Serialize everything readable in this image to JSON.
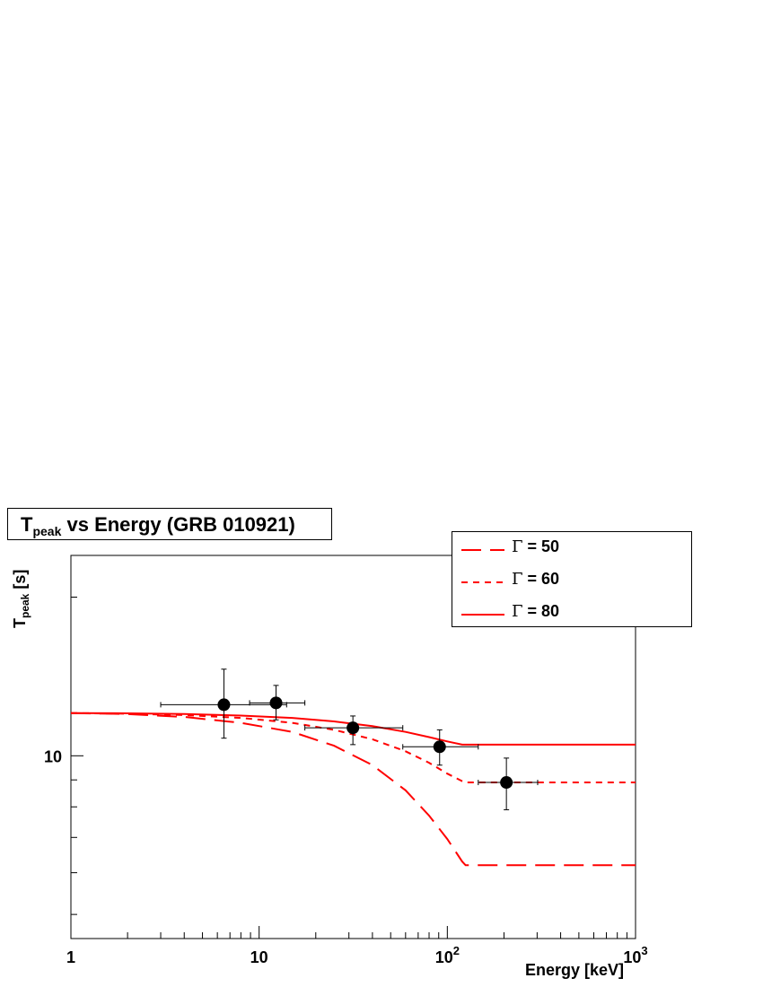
{
  "chart_data": {
    "type": "scatter",
    "title_main": "T",
    "title_sub": "peak",
    "title_rest": " vs Energy (GRB 010921)",
    "xlabel": "Energy [keV]",
    "ylabel_main": "T",
    "ylabel_sub": "peak",
    "ylabel_rest": " [s]",
    "x_scale": "log",
    "y_scale": "log",
    "xlim": [
      1,
      1000
    ],
    "ylim": [
      4.5,
      24
    ],
    "x_ticks": [
      {
        "value": 1,
        "base": "1",
        "exp": ""
      },
      {
        "value": 10,
        "base": "10",
        "exp": ""
      },
      {
        "value": 100,
        "base": "10",
        "exp": "2"
      },
      {
        "value": 1000,
        "base": "10",
        "exp": "3"
      }
    ],
    "y_ticks": [
      {
        "value": 10,
        "label": "10"
      }
    ],
    "grid": false,
    "legend_position": "top-right",
    "color": "#ff0000",
    "points": [
      {
        "x": 6.5,
        "y": 12.5,
        "xerr": [
          3.0,
          14.0
        ],
        "yerr": [
          10.8,
          14.6
        ]
      },
      {
        "x": 12.3,
        "y": 12.6,
        "xerr": [
          8.9,
          17.5
        ],
        "yerr": [
          11.7,
          13.6
        ]
      },
      {
        "x": 31.5,
        "y": 11.3,
        "xerr": [
          17.5,
          58.0
        ],
        "yerr": [
          10.5,
          11.9
        ]
      },
      {
        "x": 91.0,
        "y": 10.4,
        "xerr": [
          58.0,
          146.0
        ],
        "yerr": [
          9.6,
          11.2
        ]
      },
      {
        "x": 206.0,
        "y": 8.9,
        "xerr": [
          146.0,
          302.0
        ],
        "yerr": [
          7.9,
          9.9
        ]
      }
    ],
    "series": [
      {
        "name": "Γ = 50",
        "greek": "Γ",
        "rest": " = 50",
        "dash": "22,10",
        "x": [
          1,
          2,
          4,
          8,
          15,
          25,
          40,
          60,
          80,
          100,
          120,
          125,
          200,
          400,
          1000
        ],
        "y": [
          12.05,
          12.0,
          11.85,
          11.55,
          11.1,
          10.45,
          9.6,
          8.6,
          7.7,
          6.95,
          6.3,
          6.2,
          6.2,
          6.2,
          6.2
        ]
      },
      {
        "name": "Γ = 60",
        "greek": "Γ",
        "rest": " = 60",
        "dash": "7,6",
        "x": [
          1,
          2,
          4,
          8,
          15,
          25,
          40,
          60,
          80,
          100,
          120,
          125,
          200,
          400,
          1000
        ],
        "y": [
          12.05,
          12.02,
          11.95,
          11.8,
          11.55,
          11.2,
          10.75,
          10.2,
          9.7,
          9.25,
          8.95,
          8.9,
          8.9,
          8.9,
          8.9
        ]
      },
      {
        "name": "Γ = 80",
        "greek": "Γ",
        "rest": " = 80",
        "dash": "",
        "x": [
          1,
          2,
          4,
          8,
          15,
          25,
          40,
          60,
          80,
          100,
          120,
          125,
          200,
          400,
          1000
        ],
        "y": [
          12.05,
          12.04,
          12.0,
          11.92,
          11.8,
          11.62,
          11.38,
          11.1,
          10.85,
          10.65,
          10.5,
          10.5,
          10.5,
          10.5,
          10.5
        ]
      }
    ]
  }
}
